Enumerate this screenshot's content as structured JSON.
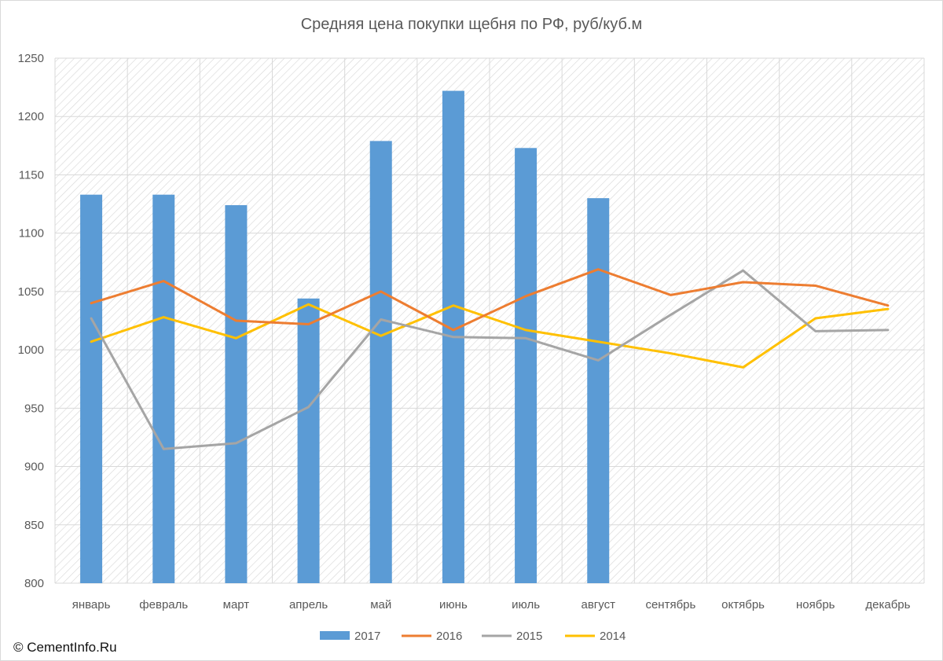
{
  "chart_data": {
    "type": "bar+line",
    "title": "Средняя цена покупки щебня по РФ, руб/куб.м",
    "categories": [
      "январь",
      "февраль",
      "март",
      "апрель",
      "май",
      "июнь",
      "июль",
      "август",
      "сентябрь",
      "октябрь",
      "ноябрь",
      "декабрь"
    ],
    "ylim": [
      800,
      1250
    ],
    "yticks": [
      800,
      850,
      900,
      950,
      1000,
      1050,
      1100,
      1150,
      1200,
      1250
    ],
    "grid": true,
    "legend_position": "bottom",
    "series": [
      {
        "name": "2017",
        "type": "bar",
        "color": "#5b9bd5",
        "values": [
          1133,
          1133,
          1124,
          1044,
          1179,
          1222,
          1173,
          1130,
          null,
          null,
          null,
          null
        ]
      },
      {
        "name": "2016",
        "type": "line",
        "color": "#ed7d31",
        "values": [
          1040,
          1059,
          1025,
          1022,
          1050,
          1017,
          1046,
          1069,
          1047,
          1058,
          1055,
          1038
        ]
      },
      {
        "name": "2015",
        "type": "line",
        "color": "#a5a5a5",
        "values": [
          1027,
          915,
          920,
          951,
          1026,
          1011,
          1010,
          991,
          1030,
          1068,
          1016,
          1017
        ]
      },
      {
        "name": "2014",
        "type": "line",
        "color": "#ffc000",
        "values": [
          1007,
          1028,
          1010,
          1039,
          1012,
          1038,
          1017,
          1007,
          997,
          985,
          1027,
          1035
        ]
      }
    ]
  },
  "copyright": "© CementInfo.Ru"
}
